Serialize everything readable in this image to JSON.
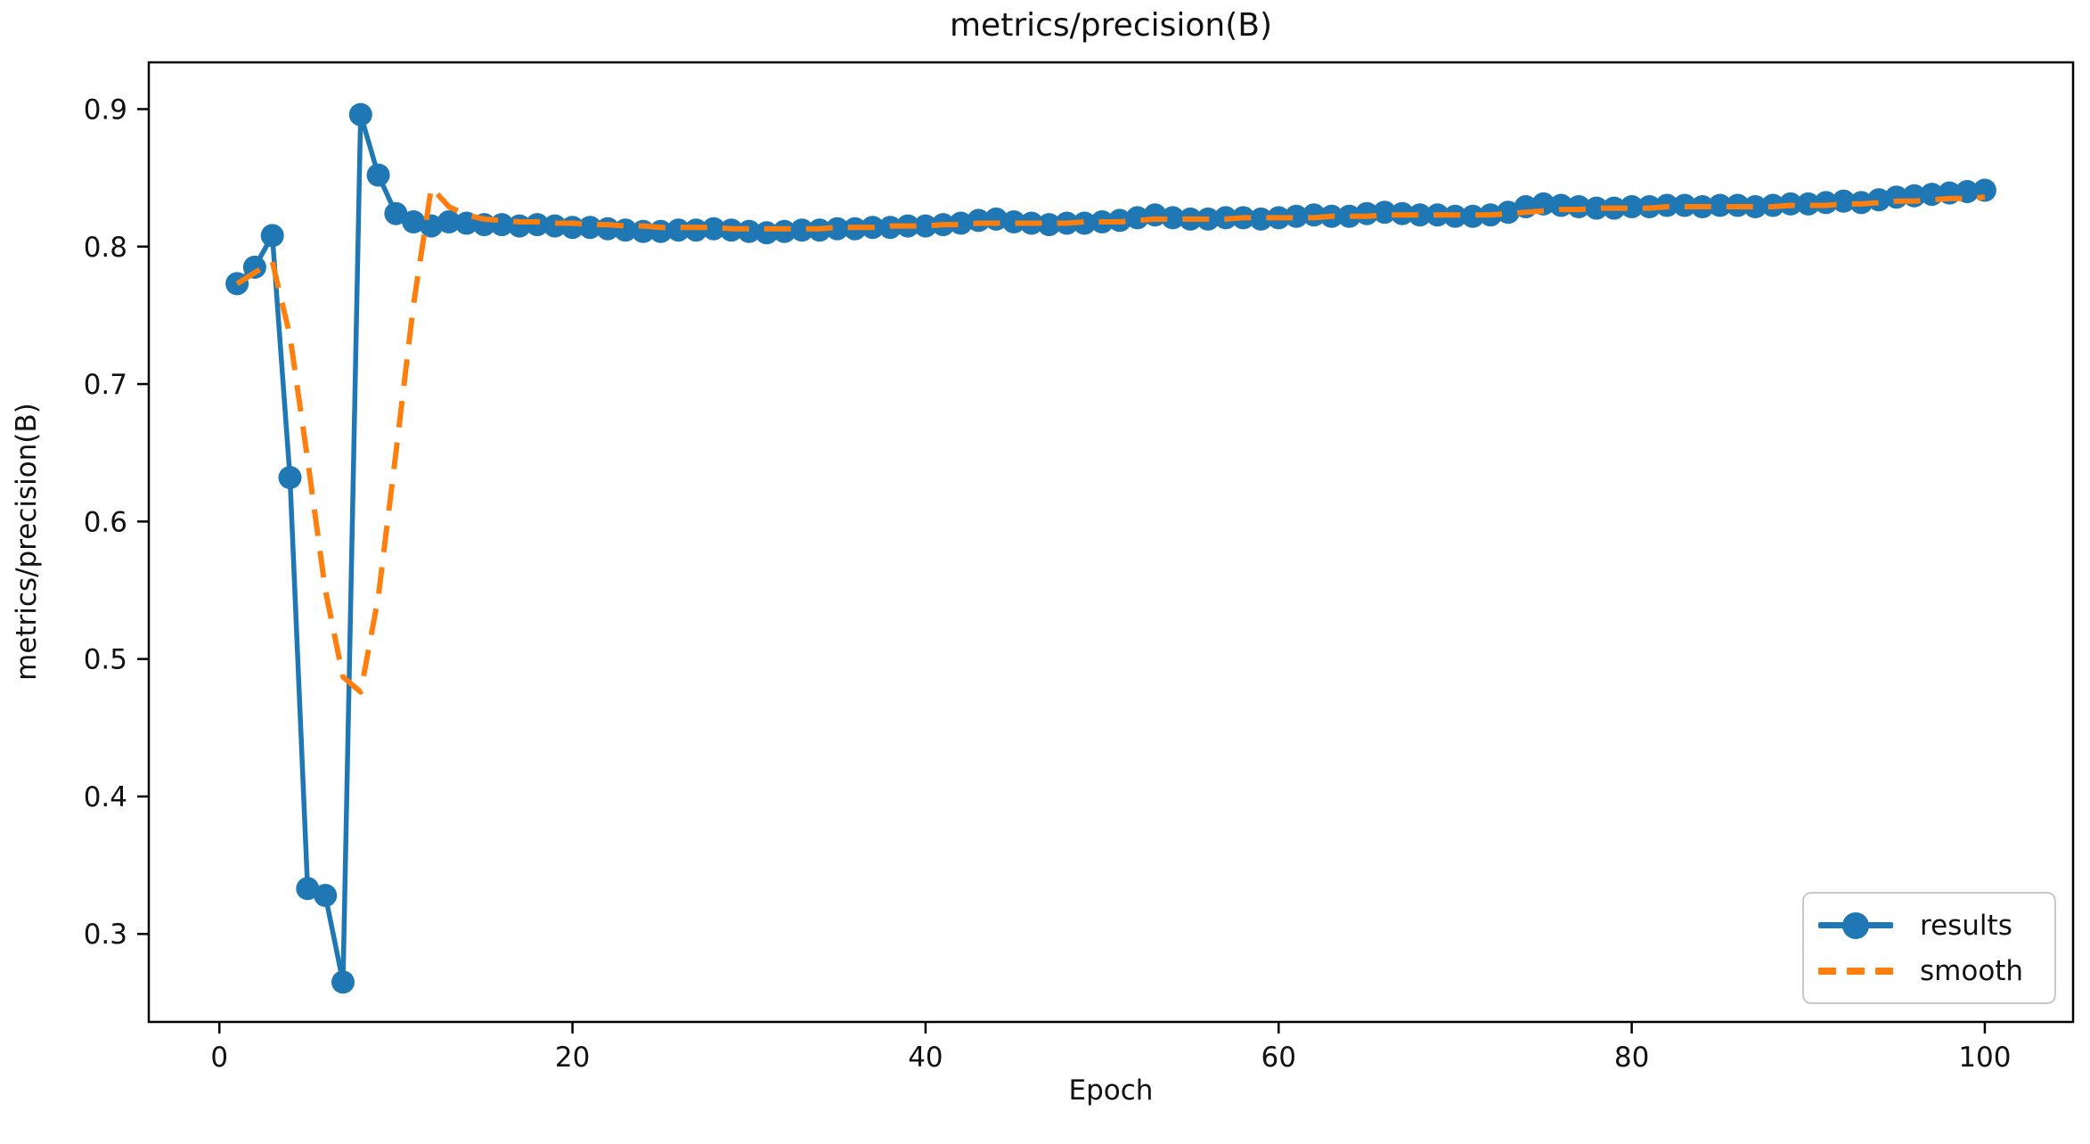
{
  "chart_data": {
    "type": "line",
    "title": "metrics/precision(B)",
    "xlabel": "Epoch",
    "ylabel": "metrics/precision(B)",
    "xlim": [
      -4,
      105
    ],
    "ylim": [
      0.236,
      0.934
    ],
    "x_ticks": [
      0,
      20,
      40,
      60,
      80,
      100
    ],
    "y_ticks": [
      0.3,
      0.4,
      0.5,
      0.6,
      0.7,
      0.8,
      0.9
    ],
    "grid": false,
    "legend_position": "lower right",
    "x_start": 1,
    "x_step": 1,
    "series": [
      {
        "name": "results",
        "color": "#1f77b4",
        "style": "solid",
        "marker": "circle",
        "values": [
          0.773,
          0.785,
          0.808,
          0.632,
          0.333,
          0.328,
          0.265,
          0.896,
          0.852,
          0.824,
          0.818,
          0.815,
          0.818,
          0.817,
          0.816,
          0.816,
          0.815,
          0.816,
          0.815,
          0.814,
          0.814,
          0.813,
          0.812,
          0.811,
          0.811,
          0.812,
          0.812,
          0.813,
          0.812,
          0.811,
          0.81,
          0.811,
          0.812,
          0.812,
          0.813,
          0.813,
          0.814,
          0.814,
          0.815,
          0.815,
          0.816,
          0.817,
          0.819,
          0.82,
          0.818,
          0.817,
          0.816,
          0.817,
          0.817,
          0.818,
          0.819,
          0.821,
          0.823,
          0.821,
          0.82,
          0.82,
          0.821,
          0.821,
          0.82,
          0.821,
          0.822,
          0.823,
          0.822,
          0.822,
          0.824,
          0.825,
          0.824,
          0.823,
          0.823,
          0.822,
          0.822,
          0.823,
          0.825,
          0.829,
          0.831,
          0.83,
          0.829,
          0.828,
          0.828,
          0.829,
          0.829,
          0.83,
          0.83,
          0.829,
          0.83,
          0.83,
          0.829,
          0.83,
          0.831,
          0.831,
          0.832,
          0.833,
          0.832,
          0.834,
          0.836,
          0.837,
          0.838,
          0.839,
          0.84,
          0.841
        ]
      },
      {
        "name": "smooth",
        "color": "#ff7f0e",
        "style": "dashed",
        "marker": "none",
        "values": [
          0.773,
          0.781,
          0.789,
          0.735,
          0.645,
          0.55,
          0.487,
          0.476,
          0.545,
          0.65,
          0.758,
          0.843,
          0.829,
          0.823,
          0.82,
          0.819,
          0.818,
          0.818,
          0.817,
          0.817,
          0.816,
          0.816,
          0.815,
          0.815,
          0.814,
          0.814,
          0.814,
          0.814,
          0.813,
          0.813,
          0.813,
          0.813,
          0.813,
          0.813,
          0.814,
          0.814,
          0.814,
          0.815,
          0.815,
          0.815,
          0.816,
          0.816,
          0.817,
          0.817,
          0.817,
          0.817,
          0.817,
          0.817,
          0.818,
          0.818,
          0.818,
          0.819,
          0.82,
          0.82,
          0.82,
          0.82,
          0.82,
          0.821,
          0.821,
          0.821,
          0.821,
          0.821,
          0.822,
          0.822,
          0.822,
          0.823,
          0.823,
          0.823,
          0.823,
          0.823,
          0.823,
          0.823,
          0.824,
          0.825,
          0.826,
          0.827,
          0.827,
          0.828,
          0.828,
          0.828,
          0.828,
          0.829,
          0.829,
          0.829,
          0.829,
          0.829,
          0.829,
          0.829,
          0.83,
          0.83,
          0.83,
          0.831,
          0.831,
          0.832,
          0.833,
          0.833,
          0.834,
          0.835,
          0.835,
          0.836
        ]
      }
    ]
  }
}
